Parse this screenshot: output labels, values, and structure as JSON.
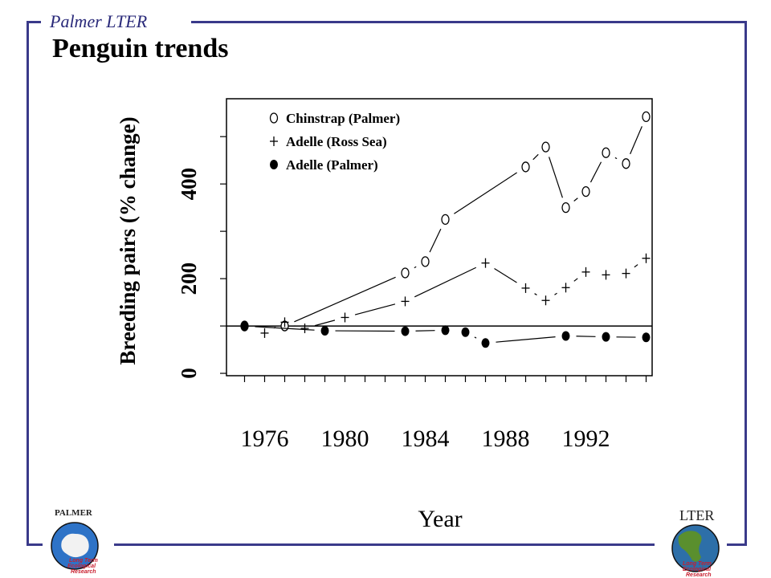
{
  "header": {
    "organization": "Palmer LTER",
    "title": "Penguin trends"
  },
  "logos": {
    "left_caption": "PALMER",
    "left_ring_text": "Long Term Ecological Research",
    "right_caption": "LTER",
    "right_ring_text": "Long Term Ecological Research"
  },
  "colors": {
    "frame": "#3a3a8a",
    "ink": "#000000"
  },
  "chart_data": {
    "type": "line",
    "xlabel": "Year",
    "ylabel": "Breeding pairs (% change)",
    "xlim": [
      1974.1,
      1995.3
    ],
    "ylim": [
      -5,
      580
    ],
    "x_ticks": [
      1976,
      1980,
      1984,
      1988,
      1992
    ],
    "x_minor_ticks": [
      1975,
      1976,
      1977,
      1978,
      1979,
      1980,
      1981,
      1982,
      1983,
      1984,
      1985,
      1986,
      1987,
      1988,
      1989,
      1990,
      1991,
      1992,
      1993,
      1994,
      1995
    ],
    "y_ticks": [
      0,
      200,
      400
    ],
    "y_minor_ticks": [
      0,
      100,
      200,
      300,
      400,
      500
    ],
    "reference_line": 100,
    "legend_position": "top-left",
    "series": [
      {
        "name": "Chinstrap (Palmer)",
        "marker": "open-circle",
        "x": [
          1975,
          1977,
          1983,
          1984,
          1985,
          1989,
          1990,
          1991,
          1992,
          1993,
          1994,
          1995
        ],
        "y": [
          100,
          100,
          212,
          236,
          325,
          436,
          478,
          350,
          384,
          466,
          443,
          542
        ]
      },
      {
        "name": "Adelle (Ross Sea)",
        "marker": "plus",
        "x": [
          1976,
          1977,
          1978,
          1980,
          1983,
          1987,
          1989,
          1990,
          1991,
          1992,
          1993,
          1994,
          1995
        ],
        "y": [
          85,
          108,
          95,
          118,
          152,
          233,
          180,
          154,
          181,
          214,
          208,
          211,
          243
        ]
      },
      {
        "name": "Adelle (Palmer)",
        "marker": "filled-circle",
        "x": [
          1975,
          1979,
          1983,
          1985,
          1986,
          1987,
          1991,
          1993,
          1995
        ],
        "y": [
          100,
          90,
          89,
          91,
          87,
          64,
          79,
          77,
          76
        ]
      }
    ]
  }
}
